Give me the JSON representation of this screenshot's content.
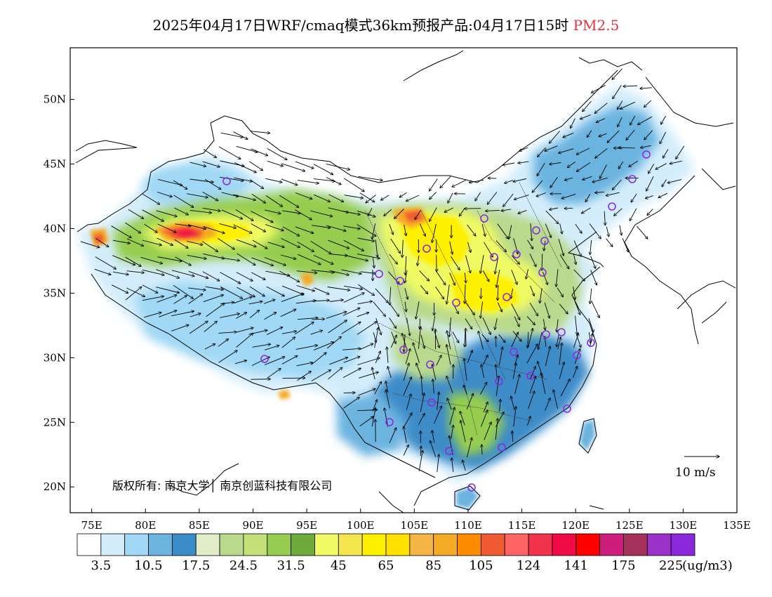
{
  "title": {
    "prefix": "2025年04月17日WRF/cmaq模式36km预报产品:04月17日15时",
    "pollutant": "PM2.5"
  },
  "map": {
    "lon_range": [
      73,
      135
    ],
    "lat_range": [
      18,
      54
    ],
    "lat_ticks": [
      "50N",
      "45N",
      "40N",
      "35N",
      "30N",
      "25N",
      "20N"
    ],
    "lat_values": [
      50,
      45,
      40,
      35,
      30,
      25,
      20
    ],
    "lon_ticks": [
      "75E",
      "80E",
      "85E",
      "90E",
      "95E",
      "100E",
      "105E",
      "110E",
      "115E",
      "120E",
      "125E",
      "130E",
      "135E"
    ],
    "lon_values": [
      75,
      80,
      85,
      90,
      95,
      100,
      105,
      110,
      115,
      120,
      125,
      130,
      135
    ],
    "credit": "版权所有: 南京大学│ 南京创蓝科技有限公司",
    "wind_scale": "10 m/s",
    "city_marker_color": "#8a2be2"
  },
  "colorbar": {
    "colors": [
      "#ffffff",
      "#d4edfb",
      "#a0d8f5",
      "#6cb4e0",
      "#3c8cc8",
      "#e1ecc8",
      "#b9d98c",
      "#c3e178",
      "#96cd50",
      "#6eaa3c",
      "#f0fa64",
      "#f5e650",
      "#fff000",
      "#ffe100",
      "#f5b446",
      "#f5aa28",
      "#ff8c00",
      "#f05a32",
      "#ff6464",
      "#f0324b",
      "#f00a46",
      "#ff0000",
      "#cd1e7d",
      "#a5325a",
      "#9b32c8",
      "#8c28dc"
    ],
    "labels": [
      "3.5",
      "10.5",
      "17.5",
      "24.5",
      "31.5",
      "45",
      "65",
      "85",
      "105",
      "124",
      "141",
      "175",
      "225"
    ],
    "unit": "(ug/m3)"
  }
}
